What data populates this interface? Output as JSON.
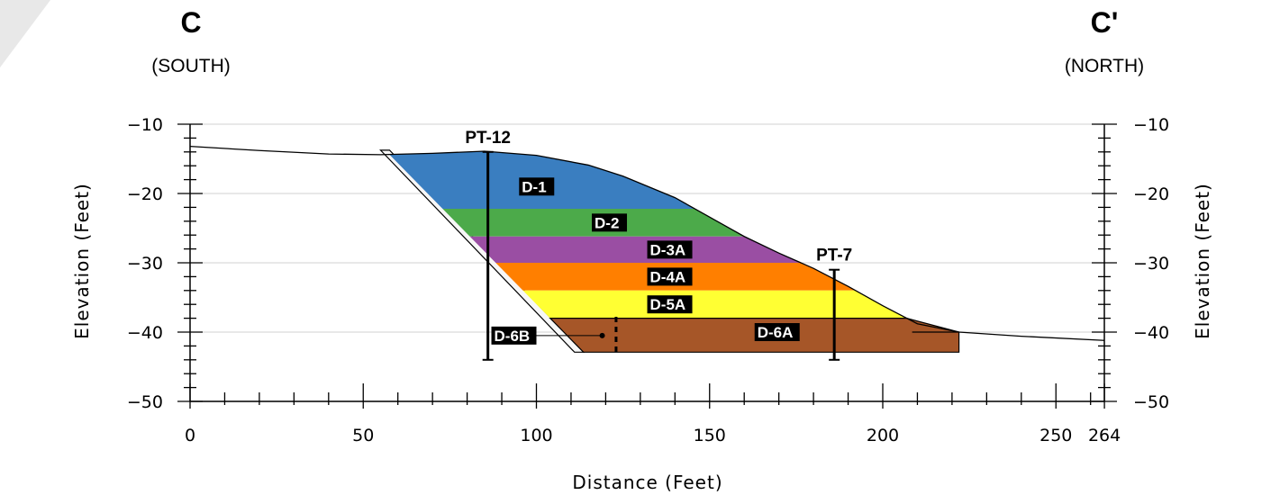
{
  "section": {
    "left_end": {
      "name": "C",
      "direction": "(SOUTH)"
    },
    "right_end": {
      "name": "C'",
      "direction": "(NORTH)"
    }
  },
  "axes": {
    "x_title": "Distance (Feet)",
    "y_title": "Elevation (Feet)",
    "x_range": [
      0,
      264
    ],
    "y_range": [
      -50,
      -10
    ],
    "x_ticks": [
      0,
      50,
      100,
      150,
      200,
      250,
      264
    ],
    "x_tick_labels": [
      "0",
      "50",
      "100",
      "150",
      "200",
      "250",
      "264"
    ],
    "y_ticks": [
      -10,
      -20,
      -30,
      -40,
      -50
    ],
    "y_tick_labels": [
      "−10",
      "−20",
      "−30",
      "−40",
      "−50"
    ]
  },
  "ground_surface": [
    [
      0,
      -13.2
    ],
    [
      20,
      -13.8
    ],
    [
      40,
      -14.3
    ],
    [
      55,
      -14.4
    ],
    [
      70,
      -14.2
    ],
    [
      85,
      -13.9
    ],
    [
      100,
      -14.5
    ],
    [
      115,
      -15.9
    ],
    [
      125,
      -17.5
    ],
    [
      140,
      -20.6
    ],
    [
      150,
      -23.4
    ],
    [
      160,
      -26.2
    ],
    [
      170,
      -28.6
    ],
    [
      180,
      -30.8
    ],
    [
      190,
      -33.4
    ],
    [
      200,
      -36.2
    ],
    [
      210,
      -38.8
    ],
    [
      222,
      -40.0
    ],
    [
      240,
      -40.6
    ],
    [
      264,
      -41.2
    ]
  ],
  "embankment": {
    "crest_x": 55,
    "crest_y": -14.4,
    "toe_x": 111,
    "toe_y": -42.9,
    "base_right_x": 222,
    "base_y": -42.9
  },
  "layers": [
    {
      "label": "D-1",
      "top": -14.4,
      "bottom": -22.2,
      "color": "#3a7ec0",
      "label_x": 95,
      "label_y": -19.0
    },
    {
      "label": "D-2",
      "top": -22.2,
      "bottom": -26.2,
      "color": "#4caa4a",
      "label_x": 116,
      "label_y": -24.2
    },
    {
      "label": "D-3A",
      "top": -26.2,
      "bottom": -30.0,
      "color": "#9a4ea3",
      "label_x": 132,
      "label_y": -28.1
    },
    {
      "label": "D-4A",
      "top": -30.0,
      "bottom": -34.0,
      "color": "#ff7f00",
      "label_x": 132,
      "label_y": -32.0
    },
    {
      "label": "D-5A",
      "top": -34.0,
      "bottom": -38.0,
      "color": "#ffff33",
      "label_x": 132,
      "label_y": -36.0
    },
    {
      "label": "D-6A",
      "top": -38.0,
      "bottom": -42.9,
      "color": "#a65628",
      "label_x": 163,
      "label_y": -40.0
    }
  ],
  "d6b": {
    "label": "D-6B",
    "label_x": 87,
    "label_y": -40.5,
    "point_x": 119,
    "point_y": -40.5,
    "contact_x": 123,
    "contact_top": -37.8,
    "contact_bottom": -42.9
  },
  "borings": [
    {
      "name": "PT-12",
      "x": 86,
      "top": -14.0,
      "bottom": -44.0
    },
    {
      "name": "PT-7",
      "x": 186,
      "top": -31.0,
      "bottom": -44.0
    }
  ],
  "colors": {
    "ground_line": "#000000",
    "gridline": "#d9d9d9",
    "slope_face": "#f7f7f7"
  }
}
